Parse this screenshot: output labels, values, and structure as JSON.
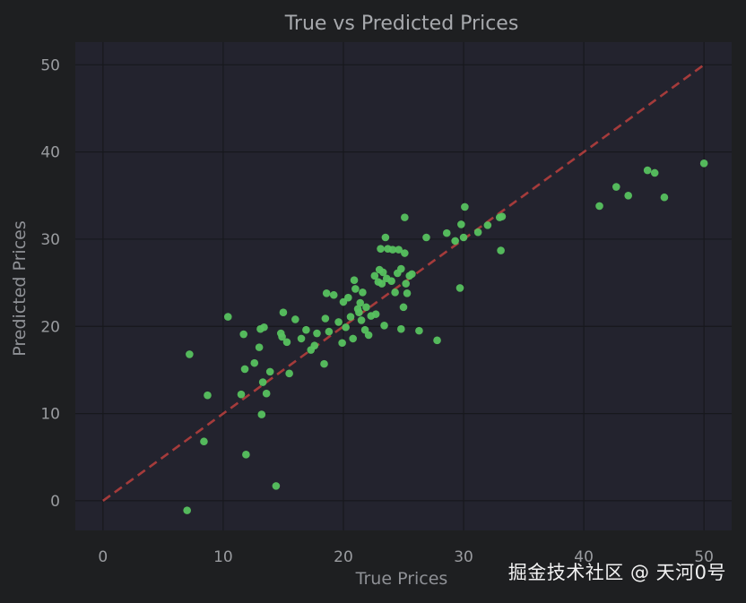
{
  "chart_data": {
    "type": "scatter",
    "title": "True vs Predicted Prices",
    "xlabel": "True Prices",
    "ylabel": "Predicted Prices",
    "xlim": [
      -2.3,
      52.3
    ],
    "ylim": [
      -3.4,
      52.6
    ],
    "xticks": [
      "0",
      "10",
      "20",
      "30",
      "40",
      "50"
    ],
    "yticks": [
      "0",
      "10",
      "20",
      "30",
      "40",
      "50"
    ],
    "grid": true,
    "colors": {
      "background": "#1e1f21",
      "plot_background": "#23232e",
      "grid": "#17181d",
      "points": "#57c25f",
      "reference_line": "#a53b3b"
    },
    "reference_line": {
      "style": "dashed",
      "x": [
        0,
        50
      ],
      "y": [
        0,
        50
      ]
    },
    "points": [
      [
        7.2,
        16.8
      ],
      [
        7.0,
        -1.1
      ],
      [
        8.4,
        6.8
      ],
      [
        8.7,
        12.1
      ],
      [
        10.4,
        21.1
      ],
      [
        11.5,
        12.2
      ],
      [
        11.7,
        19.1
      ],
      [
        11.8,
        15.1
      ],
      [
        11.9,
        5.3
      ],
      [
        12.6,
        15.8
      ],
      [
        13.0,
        17.6
      ],
      [
        13.1,
        19.7
      ],
      [
        13.2,
        9.9
      ],
      [
        13.3,
        13.6
      ],
      [
        13.4,
        19.9
      ],
      [
        13.6,
        12.3
      ],
      [
        13.9,
        14.8
      ],
      [
        14.4,
        1.7
      ],
      [
        14.8,
        19.2
      ],
      [
        14.9,
        18.8
      ],
      [
        15.0,
        21.6
      ],
      [
        15.3,
        18.2
      ],
      [
        15.5,
        14.6
      ],
      [
        16.0,
        20.8
      ],
      [
        16.5,
        18.6
      ],
      [
        16.9,
        19.6
      ],
      [
        17.3,
        17.3
      ],
      [
        17.6,
        17.8
      ],
      [
        17.8,
        19.2
      ],
      [
        18.4,
        15.7
      ],
      [
        18.5,
        20.9
      ],
      [
        18.6,
        23.8
      ],
      [
        18.8,
        19.4
      ],
      [
        19.2,
        23.6
      ],
      [
        19.6,
        20.5
      ],
      [
        19.9,
        18.1
      ],
      [
        20.0,
        22.8
      ],
      [
        20.2,
        19.9
      ],
      [
        20.4,
        23.3
      ],
      [
        20.6,
        21.1
      ],
      [
        20.8,
        18.6
      ],
      [
        20.9,
        25.3
      ],
      [
        21.0,
        24.3
      ],
      [
        21.2,
        22.0
      ],
      [
        21.3,
        21.6
      ],
      [
        21.4,
        22.7
      ],
      [
        21.5,
        20.7
      ],
      [
        21.6,
        23.9
      ],
      [
        21.8,
        19.6
      ],
      [
        21.9,
        22.2
      ],
      [
        22.1,
        19.0
      ],
      [
        22.3,
        21.2
      ],
      [
        22.6,
        25.8
      ],
      [
        22.7,
        21.4
      ],
      [
        22.9,
        25.1
      ],
      [
        23.0,
        26.5
      ],
      [
        23.1,
        28.9
      ],
      [
        23.2,
        24.9
      ],
      [
        23.3,
        26.2
      ],
      [
        23.4,
        20.1
      ],
      [
        23.5,
        30.2
      ],
      [
        23.6,
        25.5
      ],
      [
        23.7,
        28.9
      ],
      [
        24.0,
        25.2
      ],
      [
        24.1,
        28.8
      ],
      [
        24.3,
        23.9
      ],
      [
        24.5,
        26.1
      ],
      [
        24.6,
        28.8
      ],
      [
        24.8,
        19.7
      ],
      [
        24.8,
        26.6
      ],
      [
        25.0,
        22.2
      ],
      [
        25.1,
        32.5
      ],
      [
        25.1,
        28.4
      ],
      [
        25.2,
        24.9
      ],
      [
        25.3,
        23.8
      ],
      [
        25.5,
        25.8
      ],
      [
        25.7,
        26.0
      ],
      [
        26.3,
        19.5
      ],
      [
        26.9,
        30.2
      ],
      [
        27.8,
        18.4
      ],
      [
        28.6,
        30.7
      ],
      [
        29.3,
        29.8
      ],
      [
        29.7,
        24.4
      ],
      [
        29.8,
        31.7
      ],
      [
        30.0,
        30.2
      ],
      [
        30.1,
        33.7
      ],
      [
        31.2,
        30.8
      ],
      [
        32.0,
        31.6
      ],
      [
        33.0,
        32.5
      ],
      [
        33.1,
        28.7
      ],
      [
        33.2,
        32.6
      ],
      [
        41.3,
        33.8
      ],
      [
        42.7,
        36.0
      ],
      [
        43.7,
        35.0
      ],
      [
        45.3,
        37.9
      ],
      [
        45.9,
        37.6
      ],
      [
        46.7,
        34.8
      ],
      [
        50.0,
        38.7
      ]
    ]
  },
  "watermark": "掘金技术社区 @ 天河0号"
}
